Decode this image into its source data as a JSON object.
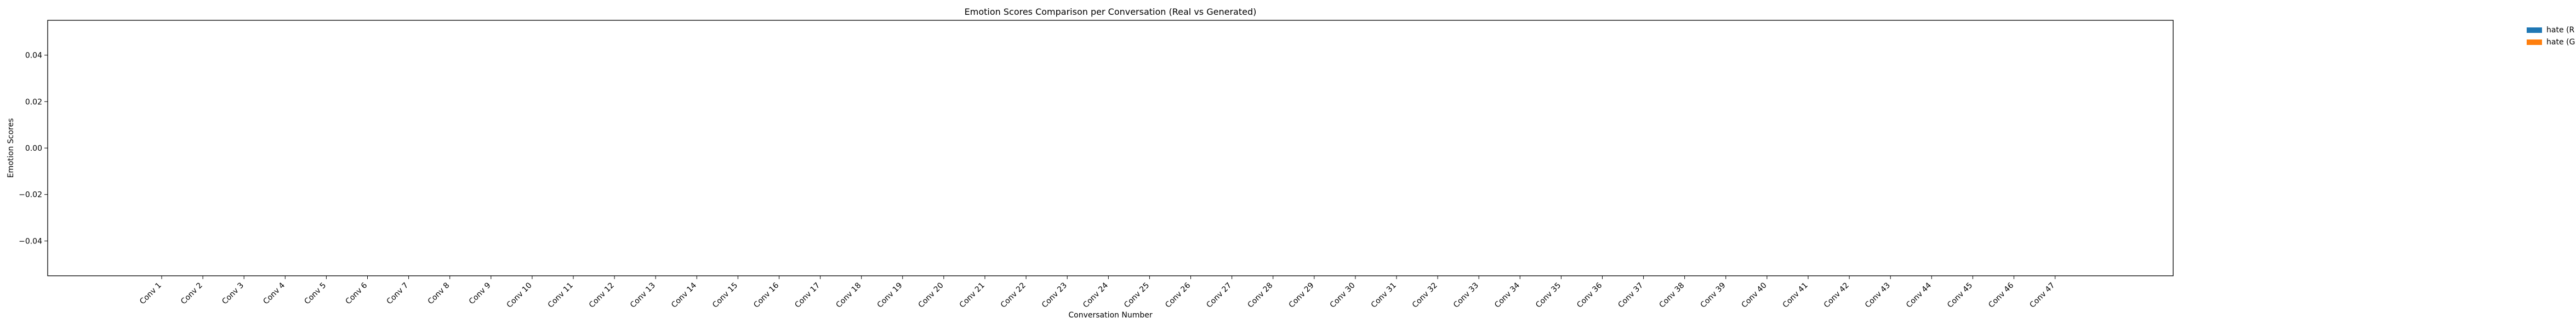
{
  "chart_data": {
    "type": "bar",
    "title": "Emotion Scores Comparison per Conversation (Real vs Generated)",
    "xlabel": "Conversation Number",
    "ylabel": "Emotion Scores",
    "categories": [
      "Conv 1",
      "Conv 2",
      "Conv 3",
      "Conv 4",
      "Conv 5",
      "Conv 6",
      "Conv 7",
      "Conv 8",
      "Conv 9",
      "Conv 10",
      "Conv 11",
      "Conv 12",
      "Conv 13",
      "Conv 14",
      "Conv 15",
      "Conv 16",
      "Conv 17",
      "Conv 18",
      "Conv 19",
      "Conv 20",
      "Conv 21",
      "Conv 22",
      "Conv 23",
      "Conv 24",
      "Conv 25",
      "Conv 26",
      "Conv 27",
      "Conv 28",
      "Conv 29",
      "Conv 30",
      "Conv 31",
      "Conv 32",
      "Conv 33",
      "Conv 34",
      "Conv 35",
      "Conv 36",
      "Conv 37",
      "Conv 38",
      "Conv 39",
      "Conv 40",
      "Conv 41",
      "Conv 42",
      "Conv 43",
      "Conv 44",
      "Conv 45",
      "Conv 46",
      "Conv 47"
    ],
    "series": [
      {
        "name": "hate (R",
        "color": "#1f77b4",
        "values": [
          0,
          0,
          0,
          0,
          0,
          0,
          0,
          0,
          0,
          0,
          0,
          0,
          0,
          0,
          0,
          0,
          0,
          0,
          0,
          0,
          0,
          0,
          0,
          0,
          0,
          0,
          0,
          0,
          0,
          0,
          0,
          0,
          0,
          0,
          0,
          0,
          0,
          0,
          0,
          0,
          0,
          0,
          0,
          0,
          0,
          0,
          0
        ]
      },
      {
        "name": "hate (G",
        "color": "#ff7f0e",
        "values": [
          0,
          0,
          0,
          0,
          0,
          0,
          0,
          0,
          0,
          0,
          0,
          0,
          0,
          0,
          0,
          0,
          0,
          0,
          0,
          0,
          0,
          0,
          0,
          0,
          0,
          0,
          0,
          0,
          0,
          0,
          0,
          0,
          0,
          0,
          0,
          0,
          0,
          0,
          0,
          0,
          0,
          0,
          0,
          0,
          0,
          0,
          0
        ]
      }
    ],
    "ylim": [
      -0.055,
      0.055
    ],
    "yticks": [
      "0.04",
      "0.02",
      "0.00",
      "−0.02",
      "−0.04"
    ],
    "ytick_values": [
      0.04,
      0.02,
      0.0,
      -0.02,
      -0.04
    ],
    "grid": false,
    "legend_position": "top-right outside"
  }
}
